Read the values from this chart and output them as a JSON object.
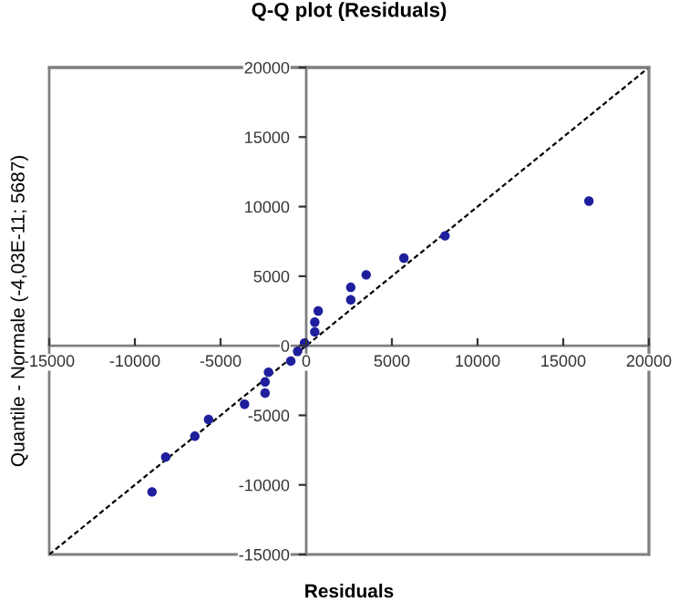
{
  "chart_data": {
    "type": "scatter",
    "title": "Q-Q plot (Residuals)",
    "xlabel": "Residuals",
    "ylabel": "Quantile - Normale (-4,03E-11; 5687)",
    "xlim": [
      -15000,
      20000
    ],
    "ylim": [
      -15000,
      20000
    ],
    "xticks": [
      -15000,
      -10000,
      -5000,
      0,
      5000,
      10000,
      15000,
      20000
    ],
    "yticks": [
      -15000,
      -10000,
      -5000,
      0,
      5000,
      10000,
      15000,
      20000
    ],
    "grid": false,
    "legend": false,
    "marker": "circle",
    "series": [
      {
        "color": "#1f1f9e",
        "x": [
          -9000,
          -8200,
          -6500,
          -5700,
          -3600,
          -2400,
          -2400,
          -2200,
          -900,
          -500,
          -100,
          500,
          500,
          700,
          2600,
          2600,
          3500,
          5700,
          8100,
          16500
        ],
        "values": [
          -10500,
          -8000,
          -6500,
          -5300,
          -4200,
          -3400,
          -2600,
          -1900,
          -1100,
          -400,
          200,
          1000,
          1700,
          2500,
          3300,
          4200,
          5100,
          6300,
          7900,
          10400
        ]
      },
      {
        "type": "line",
        "color": "#000000",
        "line_style": "dashed",
        "marker": "none",
        "x": [
          -15000,
          20000
        ],
        "values": [
          -15000,
          20000
        ]
      }
    ]
  }
}
